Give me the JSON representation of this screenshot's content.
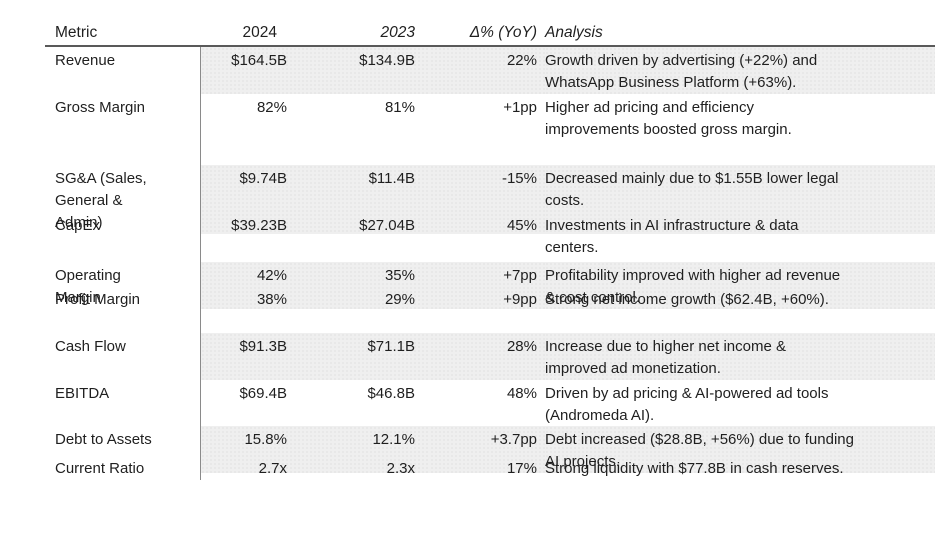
{
  "table": {
    "headers": {
      "metric": "Metric",
      "y2024": "2024",
      "y2023": "2023",
      "delta": "Δ% (YoY)",
      "analysis": "Analysis"
    },
    "rows": [
      {
        "metric": "Revenue",
        "y2024": "$164.5B",
        "y2023": "$134.9B",
        "delta": "22%",
        "analysis": "Growth driven by advertising (+22%) and\nWhatsApp Business Platform (+63%)."
      },
      {
        "metric": "Gross Margin",
        "y2024": "82%",
        "y2023": "81%",
        "delta": "+1pp",
        "analysis": "Higher ad pricing and efficiency\nimprovements boosted gross margin."
      },
      {
        "metric": "SG&A (Sales,\nGeneral &\nAdmin)",
        "y2024": "$9.74B",
        "y2023": "$11.4B",
        "delta": "-15%",
        "analysis": "Decreased mainly due to $1.55B lower legal\ncosts."
      },
      {
        "metric": "CapEx",
        "y2024": "$39.23B",
        "y2023": "$27.04B",
        "delta": "45%",
        "analysis": "Investments in AI infrastructure & data\ncenters."
      },
      {
        "metric": "Operating\nMargin",
        "y2024": "42%",
        "y2023": "35%",
        "delta": "+7pp",
        "analysis": "Profitability improved with higher ad revenue\n& cost control."
      },
      {
        "metric": "Profit Margin",
        "y2024": "38%",
        "y2023": "29%",
        "delta": "+9pp",
        "analysis": "Strong net income growth ($62.4B, +60%)."
      },
      {
        "metric": "Cash Flow",
        "y2024": "$91.3B",
        "y2023": "$71.1B",
        "delta": "28%",
        "analysis": "Increase due to higher net income &\nimproved ad monetization."
      },
      {
        "metric": "EBITDA",
        "y2024": "$69.4B",
        "y2023": "$46.8B",
        "delta": "48%",
        "analysis": "Driven by ad pricing & AI-powered ad tools\n(Andromeda AI)."
      },
      {
        "metric": "Debt to Assets",
        "y2024": "15.8%",
        "y2023": "12.1%",
        "delta": "+3.7pp",
        "analysis": "Debt increased ($28.8B, +56%) due to funding\nAI projects."
      },
      {
        "metric": "Current Ratio",
        "y2024": "2.7x",
        "y2023": "2.3x",
        "delta": "17%",
        "analysis": "Strong liquidity with $77.8B in cash reserves."
      }
    ],
    "colors": {
      "band_fill": "#efefef",
      "band_dot": "#d7d7d7",
      "header_rule": "#595959",
      "column_rule": "#8a8a8a",
      "text": "#1f1f1f"
    }
  }
}
